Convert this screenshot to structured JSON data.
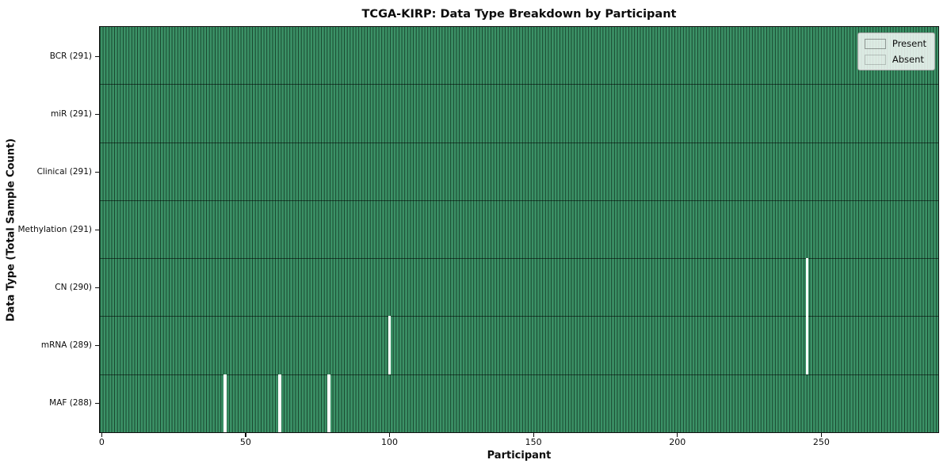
{
  "title": "TCGA-KIRP: Data Type Breakdown by Participant",
  "colors": {
    "present": "#3b9166",
    "bar_edge": "#16402a",
    "absent": "#ffffff",
    "frame": "#111111",
    "background": "#ffffff"
  },
  "legend": {
    "position": "upper right",
    "entries": [
      {
        "label": "Present",
        "color": "#3b9166"
      },
      {
        "label": "Absent",
        "color": "#ffffff"
      }
    ]
  },
  "chart_data": {
    "type": "heatmap",
    "title": "TCGA-KIRP: Data Type Breakdown by Participant",
    "xlabel": "Participant",
    "ylabel": "Data Type (Total Sample Count)",
    "x_ticks": [
      0,
      50,
      100,
      150,
      200,
      250
    ],
    "x_range": [
      -0.5,
      290.5
    ],
    "n_participants": 291,
    "grid": false,
    "legend_entries": [
      "Present",
      "Absent"
    ],
    "rows": [
      {
        "label": "BCR (291)",
        "data_type": "BCR",
        "total": 291,
        "absent_participants": []
      },
      {
        "label": "miR (291)",
        "data_type": "miR",
        "total": 291,
        "absent_participants": []
      },
      {
        "label": "Clinical (291)",
        "data_type": "Clinical",
        "total": 291,
        "absent_participants": []
      },
      {
        "label": "Methylation (291)",
        "data_type": "Methylation",
        "total": 291,
        "absent_participants": []
      },
      {
        "label": "CN (290)",
        "data_type": "CN",
        "total": 290,
        "absent_participants": [
          245
        ]
      },
      {
        "label": "mRNA (289)",
        "data_type": "mRNA",
        "total": 289,
        "absent_participants": [
          100,
          245
        ]
      },
      {
        "label": "MAF (288)",
        "data_type": "MAF",
        "total": 288,
        "absent_participants": [
          43,
          62,
          79
        ]
      }
    ]
  }
}
